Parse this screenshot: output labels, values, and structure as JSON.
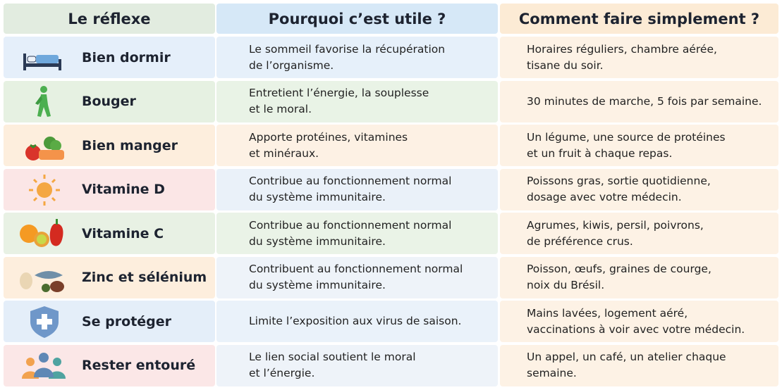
{
  "header": {
    "col1": "Le réflexe",
    "col2": "Pourquoi c’est utile ?",
    "col3": "Comment faire simplement ?"
  },
  "rows": [
    {
      "reflexe": "Bien dormir",
      "pourquoi": [
        "Le sommeil favorise la récupération",
        "de l’organisme."
      ],
      "comment": [
        "Horaires réguliers, chambre aérée,",
        "tisane du soir."
      ]
    },
    {
      "reflexe": "Bouger",
      "pourquoi": [
        "Entretient l’énergie, la souplesse",
        "et le moral."
      ],
      "comment": [
        "30 minutes de marche, 5 fois par semaine."
      ]
    },
    {
      "reflexe": "Bien manger",
      "pourquoi": [
        "Apporte protéines, vitamines",
        "et minéraux."
      ],
      "comment": [
        "Un légume, une source de protéines",
        "et un fruit à chaque repas."
      ]
    },
    {
      "reflexe": "Vitamine D",
      "pourquoi": [
        "Contribue au fonctionnement normal",
        "du système immunitaire."
      ],
      "comment": [
        "Poissons gras, sortie quotidienne,",
        "dosage avec votre médecin."
      ]
    },
    {
      "reflexe": "Vitamine C",
      "pourquoi": [
        "Contribue au fonctionnement normal",
        "du système immunitaire."
      ],
      "comment": [
        "Agrumes, kiwis, persil, poivrons,",
        "de préférence crus."
      ]
    },
    {
      "reflexe": "Zinc et sélénium",
      "pourquoi": [
        "Contribuent au fonctionnement normal",
        "du système immunitaire."
      ],
      "comment": [
        "Poisson, œufs, graines de courge,",
        "noix du Brésil."
      ]
    },
    {
      "reflexe": "Se protéger",
      "pourquoi": [
        "Limite l’exposition aux virus de saison."
      ],
      "comment": [
        "Mains lavées, logement aéré,",
        "vaccinations à voir avec votre médecin."
      ]
    },
    {
      "reflexe": "Rester entouré",
      "pourquoi": [
        "Le lien social soutient le moral",
        "et l’énergie."
      ],
      "comment": [
        "Un appel, un café, un atelier chaque semaine."
      ]
    }
  ]
}
